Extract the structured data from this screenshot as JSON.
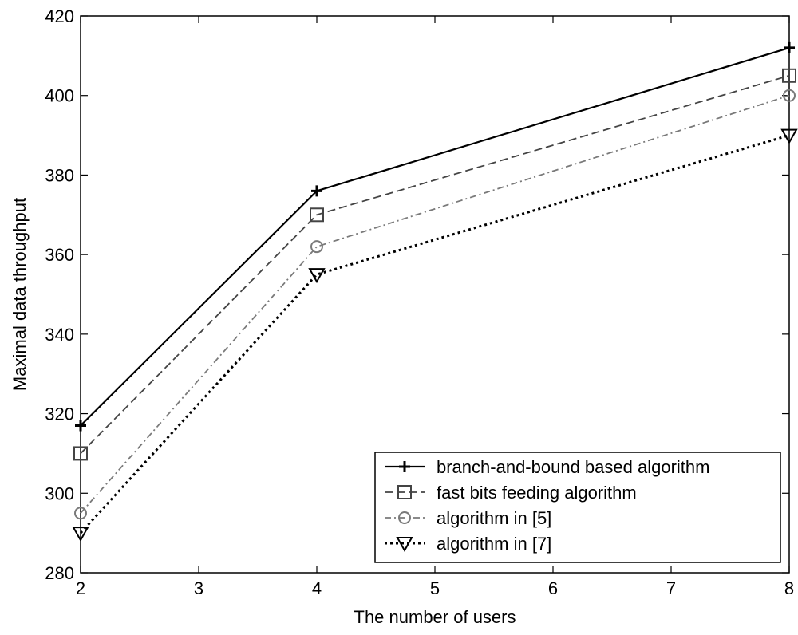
{
  "chart_data": {
    "type": "line",
    "title": "",
    "xlabel": "The number of users",
    "ylabel": "Maximal data throughput",
    "x": [
      2,
      4,
      8
    ],
    "xlim": [
      2,
      8
    ],
    "ylim": [
      280,
      420
    ],
    "xticks": [
      2,
      3,
      4,
      5,
      6,
      7,
      8
    ],
    "yticks": [
      280,
      300,
      320,
      340,
      360,
      380,
      400,
      420
    ],
    "grid": false,
    "legend_position": "bottom-right",
    "series": [
      {
        "name": "branch-and-bound based algorithm",
        "values": [
          317,
          376,
          412
        ],
        "marker": "plus",
        "line": "solid",
        "color": "#000000"
      },
      {
        "name": "fast bits feeding algorithm",
        "values": [
          310,
          370,
          405
        ],
        "marker": "square",
        "line": "dashed",
        "color": "#444444"
      },
      {
        "name": "algorithm in [5]",
        "values": [
          295,
          362,
          400
        ],
        "marker": "circle",
        "line": "dashdot",
        "color": "#7a7a7a"
      },
      {
        "name": "algorithm in [7]",
        "values": [
          290,
          355,
          390
        ],
        "marker": "triangle-down",
        "line": "dotted",
        "color": "#000000"
      }
    ]
  }
}
